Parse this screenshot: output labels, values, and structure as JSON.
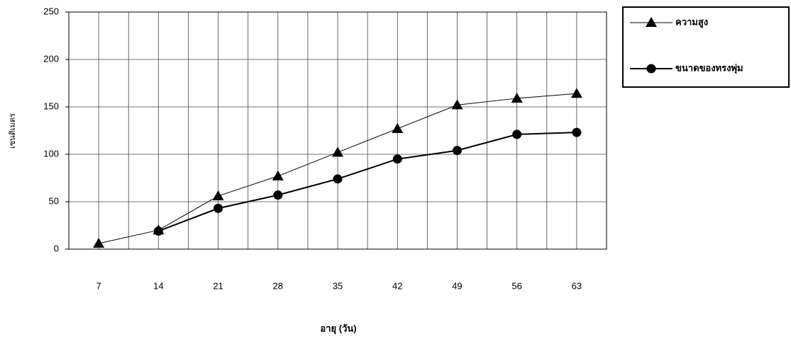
{
  "chart_data": {
    "type": "line",
    "x_label": "อายุ (วัน)",
    "y_label": "เซนติเมตร",
    "categories": [
      "7",
      "14",
      "21",
      "28",
      "35",
      "42",
      "49",
      "56",
      "63"
    ],
    "series": [
      {
        "name": "ความสูง",
        "color": "#000000",
        "marker": "triangle",
        "values": [
          6,
          20,
          56,
          77,
          102,
          127,
          152,
          159,
          164
        ]
      },
      {
        "name": "ขนาดของทรงพุ่ม",
        "color": "#000000",
        "marker": "circle",
        "values": [
          null,
          19,
          43,
          57,
          74,
          95,
          104,
          121,
          123
        ]
      }
    ],
    "ylim": [
      0,
      250
    ],
    "yticks": [
      0,
      50,
      100,
      150,
      200,
      250
    ],
    "grid": true,
    "legend": "right"
  }
}
